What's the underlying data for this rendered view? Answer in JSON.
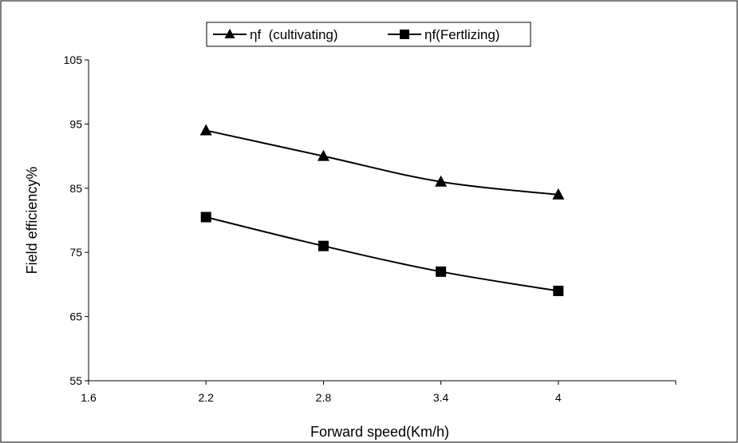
{
  "chart_data": {
    "type": "line",
    "xlabel": "Forward speed(Km/h)",
    "ylabel": "Field efficiency%",
    "x_ticks": [
      "1.6",
      "2.2",
      "2.8",
      "3.4",
      "4"
    ],
    "y_ticks": [
      "55",
      "65",
      "75",
      "85",
      "95",
      "105"
    ],
    "xlim": [
      1.6,
      4.6
    ],
    "ylim": [
      55,
      105
    ],
    "grid": false,
    "legend_position": "top-center",
    "x": [
      2.2,
      2.8,
      3.4,
      4.0
    ],
    "series": [
      {
        "name": "ηf  (cultivating)",
        "marker": "triangle",
        "color": "#000000",
        "values": [
          94,
          90,
          86,
          84
        ]
      },
      {
        "name": "ηf(Fertlizing)",
        "marker": "square",
        "color": "#000000",
        "values": [
          80.5,
          76,
          72,
          69
        ]
      }
    ]
  }
}
